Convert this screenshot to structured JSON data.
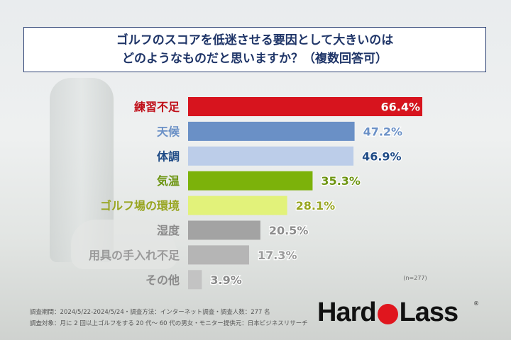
{
  "title": {
    "line1": "ゴルフのスコアを低迷させる要因として大きいのは",
    "line2": "どのようなものだと思いますか？（複数回答可）"
  },
  "chart_data": {
    "type": "bar",
    "orientation": "horizontal",
    "title": "ゴルフのスコアを低迷させる要因として大きいのは どのようなものだと思いますか？（複数回答可）",
    "categories": [
      "練習不足",
      "天候",
      "体調",
      "気温",
      "ゴルフ場の環境",
      "湿度",
      "用具の手入れ不足",
      "その他"
    ],
    "values": [
      66.4,
      47.2,
      46.9,
      35.3,
      28.1,
      20.5,
      17.3,
      3.9
    ],
    "value_labels": [
      "66.4%",
      "47.2%",
      "46.9%",
      "35.3%",
      "28.1%",
      "20.5%",
      "17.3%",
      "3.9%"
    ],
    "bar_colors": [
      "#d7141e",
      "#6a90c6",
      "#bccde9",
      "#7cb20a",
      "#e2f27a",
      "#a3a3a3",
      "#b5b5b5",
      "#c3c3c3"
    ],
    "label_colors": [
      "#c0101a",
      "#6a90c6",
      "#1f4b86",
      "#6c9410",
      "#98a520",
      "#8c8c8c",
      "#9a9a9a",
      "#8a8a8a"
    ],
    "xlim": [
      0,
      66.4
    ],
    "note": "(n=277)"
  },
  "footer": {
    "line1": "調査期間：2024/5/22-2024/5/24・調査方法：インターネット調査・調査人数：277 名",
    "line2": "調査対象：月に 2 回以上ゴルフをする 20 代～ 60 代の男女・モニター提供元：日本ビジネスリサーチ"
  },
  "logo": {
    "left": "Hard",
    "right": "Lass",
    "reg": "®"
  }
}
